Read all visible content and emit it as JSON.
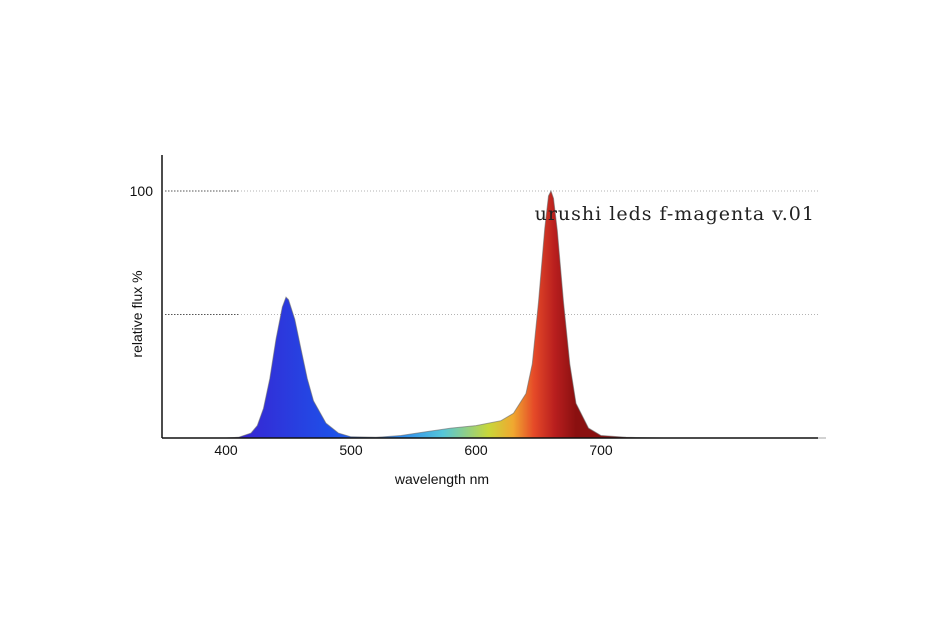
{
  "chart_data": {
    "type": "area",
    "title": "urushi leds f-magenta v.01",
    "xlabel": "wavelength nm",
    "ylabel": "relative flux %",
    "xlim": [
      350,
      880
    ],
    "ylim": [
      0,
      115
    ],
    "x_ticks": [
      400,
      500,
      600,
      700
    ],
    "y_ticks": [
      100
    ],
    "gridlines_y": [
      100,
      50
    ],
    "grid": true,
    "series": [
      {
        "x": [
          350,
          380,
          400,
          410,
          420,
          425,
          430,
          435,
          440,
          445,
          448,
          450,
          455,
          460,
          465,
          470,
          480,
          490,
          500,
          520,
          540,
          560,
          580,
          600,
          620,
          630,
          640,
          645,
          650,
          655,
          658,
          660,
          662,
          665,
          670,
          675,
          680,
          690,
          700,
          720,
          750,
          800,
          880
        ],
        "y": [
          0,
          0,
          0,
          0.3,
          2,
          5,
          12,
          24,
          40,
          53,
          57,
          56,
          48,
          36,
          24,
          15,
          6,
          2,
          0.5,
          0.3,
          1,
          2.5,
          4,
          5,
          7,
          10,
          18,
          30,
          55,
          85,
          98,
          100,
          97,
          84,
          55,
          30,
          14,
          4,
          1,
          0.3,
          0,
          0,
          0
        ]
      }
    ]
  }
}
